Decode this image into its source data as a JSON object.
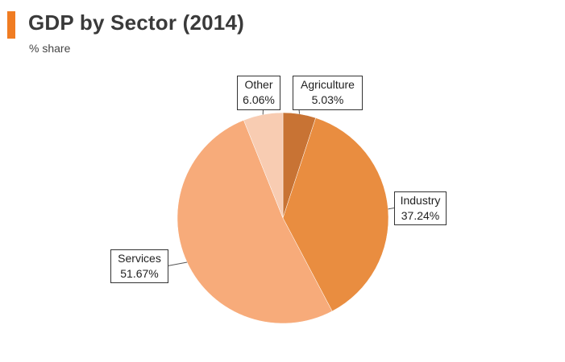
{
  "header": {
    "title": "GDP by Sector (2014)",
    "subtitle": "% share",
    "accent_color": "#f07c22"
  },
  "chart_data": {
    "type": "pie",
    "title": "GDP by Sector (2014)",
    "subtitle": "% share",
    "slices": [
      {
        "name": "Agriculture",
        "value": 5.03,
        "label": "5.03%",
        "color": "#c87334"
      },
      {
        "name": "Industry",
        "value": 37.24,
        "label": "37.24%",
        "color": "#e98d40"
      },
      {
        "name": "Services",
        "value": 51.67,
        "label": "51.67%",
        "color": "#f7ab7a"
      },
      {
        "name": "Other",
        "value": 6.06,
        "label": "6.06%",
        "color": "#f8ccb2"
      }
    ],
    "start_angle": "12 o'clock",
    "direction": "clockwise"
  }
}
